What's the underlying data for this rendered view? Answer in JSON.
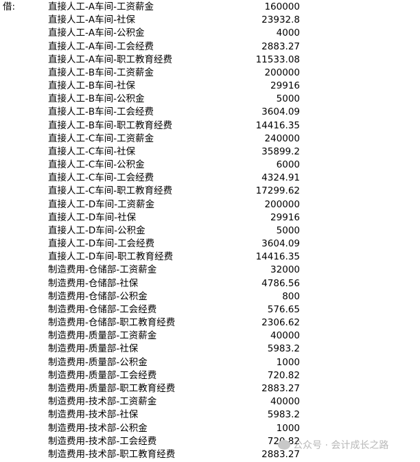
{
  "debit_label": "借:",
  "entries": [
    {
      "account": "直接人工-A车间-工资薪金",
      "amount": "160000"
    },
    {
      "account": "直接人工-A车间-社保",
      "amount": "23932.8"
    },
    {
      "account": "直接人工-A车间-公积金",
      "amount": "4000"
    },
    {
      "account": "直接人工-A车间-工会经费",
      "amount": "2883.27"
    },
    {
      "account": "直接人工-A车间-职工教育经费",
      "amount": "11533.08"
    },
    {
      "account": "直接人工-B车间-工资薪金",
      "amount": "200000"
    },
    {
      "account": "直接人工-B车间-社保",
      "amount": "29916"
    },
    {
      "account": "直接人工-B车间-公积金",
      "amount": "5000"
    },
    {
      "account": "直接人工-B车间-工会经费",
      "amount": "3604.09"
    },
    {
      "account": "直接人工-B车间-职工教育经费",
      "amount": "14416.35"
    },
    {
      "account": "直接人工-C车间-工资薪金",
      "amount": "240000"
    },
    {
      "account": "直接人工-C车间-社保",
      "amount": "35899.2"
    },
    {
      "account": "直接人工-C车间-公积金",
      "amount": "6000"
    },
    {
      "account": "直接人工-C车间-工会经费",
      "amount": "4324.91"
    },
    {
      "account": "直接人工-C车间-职工教育经费",
      "amount": "17299.62"
    },
    {
      "account": "直接人工-D车间-工资薪金",
      "amount": "200000"
    },
    {
      "account": "直接人工-D车间-社保",
      "amount": "29916"
    },
    {
      "account": "直接人工-D车间-公积金",
      "amount": "5000"
    },
    {
      "account": "直接人工-D车间-工会经费",
      "amount": "3604.09"
    },
    {
      "account": "直接人工-D车间-职工教育经费",
      "amount": "14416.35"
    },
    {
      "account": "制造费用-仓储部-工资薪金",
      "amount": "32000"
    },
    {
      "account": "制造费用-仓储部-社保",
      "amount": "4786.56"
    },
    {
      "account": "制造费用-仓储部-公积金",
      "amount": "800"
    },
    {
      "account": "制造费用-仓储部-工会经费",
      "amount": "576.65"
    },
    {
      "account": "制造费用-仓储部-职工教育经费",
      "amount": "2306.62"
    },
    {
      "account": "制造费用-质量部-工资薪金",
      "amount": "40000"
    },
    {
      "account": "制造费用-质量部-社保",
      "amount": "5983.2"
    },
    {
      "account": "制造费用-质量部-公积金",
      "amount": "1000"
    },
    {
      "account": "制造费用-质量部-工会经费",
      "amount": "720.82"
    },
    {
      "account": "制造费用-质量部-职工教育经费",
      "amount": "2883.27"
    },
    {
      "account": "制造费用-技术部-工资薪金",
      "amount": "40000"
    },
    {
      "account": "制造费用-技术部-社保",
      "amount": "5983.2"
    },
    {
      "account": "制造费用-技术部-公积金",
      "amount": "1000"
    },
    {
      "account": "制造费用-技术部-工会经费",
      "amount": "720.82"
    },
    {
      "account": "制造费用-技术部-职工教育经费",
      "amount": "2883.27"
    }
  ],
  "watermark": "公众号 · 会计成长之路"
}
